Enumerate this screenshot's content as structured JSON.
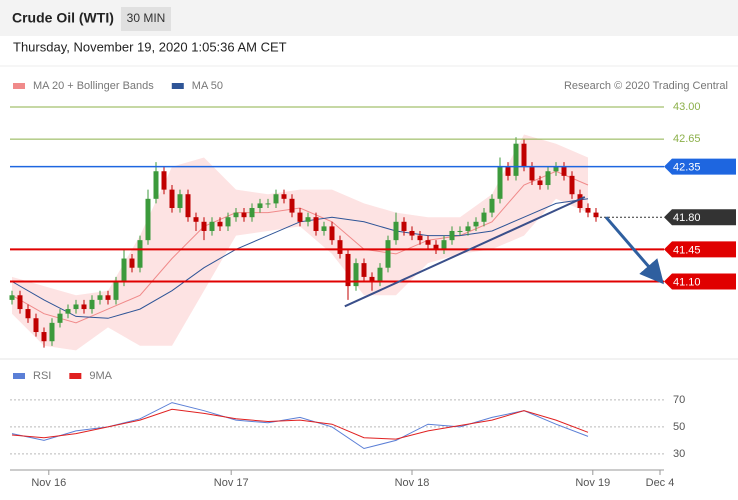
{
  "header": {
    "title": "Crude Oil (WTI)",
    "timeframe": "30 MIN",
    "timestamp": "Thursday, November 19, 2020 1:05:36 AM CET"
  },
  "chart_data": [
    {
      "type": "candlestick",
      "legend": "top-left",
      "credit": "Research © 2020 Trading Central",
      "xlim": [
        -1,
        81.5
      ],
      "ylim": [
        40.3,
        43.13
      ],
      "up_color": "#3c9a3c",
      "down_color": "#c00000",
      "candles": [
        [
          40.9,
          41.0,
          40.85,
          40.95
        ],
        [
          40.95,
          41.0,
          40.75,
          40.8
        ],
        [
          40.8,
          40.85,
          40.65,
          40.7
        ],
        [
          40.7,
          40.75,
          40.5,
          40.55
        ],
        [
          40.55,
          40.6,
          40.38,
          40.45
        ],
        [
          40.45,
          40.7,
          40.4,
          40.65
        ],
        [
          40.65,
          40.8,
          40.6,
          40.75
        ],
        [
          40.75,
          40.85,
          40.7,
          40.8
        ],
        [
          40.8,
          40.9,
          40.75,
          40.85
        ],
        [
          40.85,
          40.9,
          40.75,
          40.8
        ],
        [
          40.8,
          40.95,
          40.75,
          40.9
        ],
        [
          40.9,
          41.0,
          40.85,
          40.95
        ],
        [
          40.95,
          41.0,
          40.85,
          40.9
        ],
        [
          40.9,
          41.15,
          40.85,
          41.1
        ],
        [
          41.1,
          41.45,
          41.05,
          41.35
        ],
        [
          41.35,
          41.4,
          41.2,
          41.25
        ],
        [
          41.25,
          41.6,
          41.2,
          41.55
        ],
        [
          41.55,
          42.1,
          41.5,
          42.0
        ],
        [
          42.0,
          42.4,
          41.95,
          42.3
        ],
        [
          42.3,
          42.35,
          42.05,
          42.1
        ],
        [
          42.1,
          42.15,
          41.85,
          41.9
        ],
        [
          41.9,
          42.1,
          41.85,
          42.05
        ],
        [
          42.05,
          42.1,
          41.75,
          41.8
        ],
        [
          41.8,
          41.85,
          41.65,
          41.75
        ],
        [
          41.75,
          41.8,
          41.55,
          41.65
        ],
        [
          41.65,
          41.8,
          41.6,
          41.75
        ],
        [
          41.75,
          41.8,
          41.65,
          41.7
        ],
        [
          41.7,
          41.85,
          41.65,
          41.8
        ],
        [
          41.8,
          41.9,
          41.75,
          41.85
        ],
        [
          41.85,
          41.9,
          41.75,
          41.8
        ],
        [
          41.8,
          41.95,
          41.75,
          41.9
        ],
        [
          41.9,
          42.0,
          41.85,
          41.95
        ],
        [
          41.95,
          42.0,
          41.9,
          41.95
        ],
        [
          41.95,
          42.1,
          41.9,
          42.05
        ],
        [
          42.05,
          42.1,
          41.95,
          42.0
        ],
        [
          42.0,
          42.05,
          41.8,
          41.85
        ],
        [
          41.85,
          41.9,
          41.7,
          41.75
        ],
        [
          41.75,
          41.85,
          41.7,
          41.8
        ],
        [
          41.8,
          41.85,
          41.6,
          41.65
        ],
        [
          41.65,
          41.75,
          41.6,
          41.7
        ],
        [
          41.7,
          41.75,
          41.5,
          41.55
        ],
        [
          41.55,
          41.6,
          41.35,
          41.4
        ],
        [
          41.4,
          41.45,
          40.9,
          41.05
        ],
        [
          41.05,
          41.35,
          41.0,
          41.3
        ],
        [
          41.3,
          41.35,
          41.1,
          41.15
        ],
        [
          41.15,
          41.2,
          41.0,
          41.1
        ],
        [
          41.1,
          41.3,
          41.05,
          41.25
        ],
        [
          41.25,
          41.6,
          41.2,
          41.55
        ],
        [
          41.55,
          41.85,
          41.5,
          41.75
        ],
        [
          41.75,
          41.8,
          41.6,
          41.65
        ],
        [
          41.65,
          41.7,
          41.55,
          41.6
        ],
        [
          41.6,
          41.65,
          41.5,
          41.55
        ],
        [
          41.55,
          41.6,
          41.45,
          41.5
        ],
        [
          41.5,
          41.55,
          41.4,
          41.45
        ],
        [
          41.45,
          41.6,
          41.4,
          41.55
        ],
        [
          41.55,
          41.7,
          41.5,
          41.65
        ],
        [
          41.65,
          41.7,
          41.6,
          41.65
        ],
        [
          41.65,
          41.75,
          41.6,
          41.7
        ],
        [
          41.7,
          41.8,
          41.65,
          41.75
        ],
        [
          41.75,
          41.9,
          41.7,
          41.85
        ],
        [
          41.85,
          42.05,
          41.8,
          42.0
        ],
        [
          42.0,
          42.45,
          41.95,
          42.35
        ],
        [
          42.35,
          42.4,
          42.2,
          42.25
        ],
        [
          42.25,
          42.67,
          42.2,
          42.6
        ],
        [
          42.6,
          42.65,
          42.3,
          42.35
        ],
        [
          42.35,
          42.4,
          42.15,
          42.2
        ],
        [
          42.2,
          42.25,
          42.1,
          42.15
        ],
        [
          42.15,
          42.35,
          42.1,
          42.3
        ],
        [
          42.3,
          42.4,
          42.25,
          42.35
        ],
        [
          42.35,
          42.4,
          42.2,
          42.25
        ],
        [
          42.25,
          42.3,
          42.0,
          42.05
        ],
        [
          42.05,
          42.1,
          41.85,
          41.9
        ],
        [
          41.9,
          41.95,
          41.8,
          41.85
        ],
        [
          41.85,
          41.9,
          41.75,
          41.8
        ]
      ],
      "series": [
        {
          "name": "MA 20 + Bollinger Bands",
          "color": "#f08a8a",
          "band_color": "#fde3e3",
          "x": [
            0,
            4,
            8,
            12,
            16,
            20,
            24,
            28,
            32,
            36,
            40,
            44,
            48,
            52,
            56,
            60,
            64,
            68,
            72
          ],
          "values": [
            40.95,
            40.75,
            40.65,
            40.8,
            40.95,
            41.35,
            41.7,
            41.85,
            41.85,
            41.9,
            41.75,
            41.45,
            41.4,
            41.55,
            41.6,
            41.75,
            42.15,
            42.3,
            42.15
          ],
          "upper": [
            41.15,
            41.05,
            40.95,
            41.0,
            41.6,
            42.35,
            42.45,
            42.1,
            42.05,
            42.1,
            42.1,
            41.95,
            41.85,
            41.8,
            41.8,
            42.05,
            42.7,
            42.6,
            42.45
          ],
          "lower": [
            40.75,
            40.4,
            40.35,
            40.6,
            40.4,
            40.4,
            41.0,
            41.6,
            41.65,
            41.7,
            41.4,
            40.95,
            40.95,
            41.3,
            41.4,
            41.45,
            41.6,
            42.0,
            41.85
          ]
        },
        {
          "name": "MA 50",
          "color": "#2f5597",
          "x": [
            0,
            4,
            8,
            12,
            16,
            20,
            24,
            28,
            32,
            36,
            40,
            44,
            48,
            52,
            56,
            60,
            64,
            68,
            72
          ],
          "values": [
            41.1,
            40.9,
            40.72,
            40.7,
            40.8,
            41.0,
            41.25,
            41.45,
            41.6,
            41.75,
            41.8,
            41.75,
            41.65,
            41.6,
            41.6,
            41.65,
            41.8,
            41.95,
            42.0
          ]
        }
      ],
      "levels": [
        {
          "value": 43.0,
          "label": "43.00",
          "color": "#8cb04a",
          "tag": false,
          "dashed": false,
          "line_width": 1
        },
        {
          "value": 42.65,
          "label": "42.65",
          "color": "#8cb04a",
          "tag": false,
          "dashed": false,
          "line_width": 1
        },
        {
          "value": 42.35,
          "label": "42.35",
          "color": "#1e66e0",
          "tag": true,
          "dashed": false,
          "line_width": 1.5
        },
        {
          "value": 41.8,
          "label": "41.80",
          "color": "#333333",
          "tag": true,
          "dashed": true,
          "line_width": 1
        },
        {
          "value": 41.45,
          "label": "41.45",
          "color": "#e00000",
          "tag": true,
          "dashed": false,
          "line_width": 2
        },
        {
          "value": 41.1,
          "label": "41.10",
          "color": "#e00000",
          "tag": true,
          "dashed": false,
          "line_width": 2
        }
      ],
      "drawings": [
        {
          "type": "line",
          "color": "#3a4f8a",
          "x": [
            41.6,
            71.6
          ],
          "values": [
            40.83,
            42.02
          ]
        },
        {
          "type": "arrow",
          "color": "#2f5f9f",
          "x": [
            74.25,
            81
          ],
          "values": [
            41.8,
            41.12
          ]
        }
      ]
    },
    {
      "type": "line",
      "legend": "top-left",
      "xlim": [
        -1,
        81.5
      ],
      "ylim": [
        25.5,
        81
      ],
      "yticks": [
        70,
        50,
        30
      ],
      "grid": true,
      "xticks": [
        {
          "value": 4.6,
          "label": "Nov 16"
        },
        {
          "value": 27.4,
          "label": "Nov 17"
        },
        {
          "value": 50,
          "label": "Nov 18"
        },
        {
          "value": 72.6,
          "label": "Nov 19"
        },
        {
          "value": 81,
          "label": "Dec 4"
        }
      ],
      "series": [
        {
          "name": "RSI",
          "color": "#5b7fd6",
          "x": [
            0,
            4,
            8,
            12,
            16,
            20,
            24,
            28,
            32,
            36,
            40,
            44,
            48,
            52,
            56,
            60,
            64,
            68,
            72
          ],
          "values": [
            45,
            40,
            47,
            50,
            56,
            68,
            62,
            55,
            53,
            57,
            50,
            34,
            40,
            52,
            50,
            57,
            62,
            52,
            43
          ]
        },
        {
          "name": "9MA",
          "color": "#e02020",
          "x": [
            0,
            4,
            8,
            12,
            16,
            20,
            24,
            28,
            32,
            36,
            40,
            44,
            48,
            52,
            56,
            60,
            64,
            68,
            72
          ],
          "values": [
            44,
            42,
            45,
            50,
            55,
            63,
            60,
            56,
            54,
            55,
            52,
            42,
            41,
            47,
            51,
            55,
            62,
            55,
            46
          ]
        }
      ]
    }
  ]
}
